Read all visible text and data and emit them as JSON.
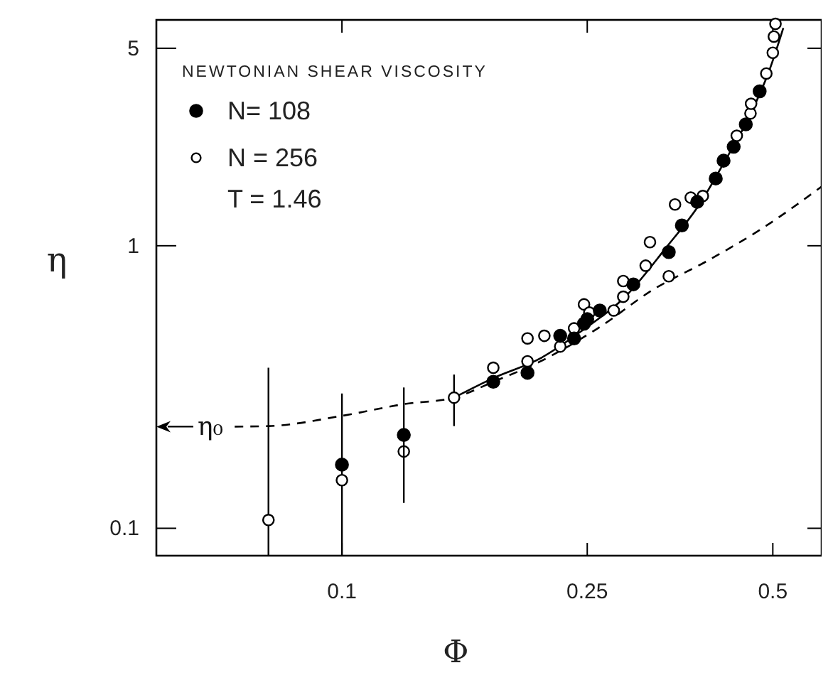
{
  "chart_data": {
    "type": "scatter",
    "legend_title": "NEWTONIAN SHEAR VISCOSITY",
    "xlabel": "Φ",
    "ylabel": "η",
    "log": "xy",
    "xlim": [
      0.05,
      0.6
    ],
    "ylim": [
      0.08,
      6.3
    ],
    "xticks": [
      0.1,
      0.25,
      0.5
    ],
    "yticks": [
      0.1,
      1,
      5
    ],
    "legend": "top left",
    "marker": "circle",
    "annotations": [
      "T = 1.46",
      "η₀"
    ],
    "series": [
      {
        "name": "N= 108",
        "color": "#000000",
        "x": [
          0.1,
          0.126,
          0.176,
          0.2,
          0.226,
          0.238,
          0.247,
          0.25,
          0.262,
          0.297,
          0.339,
          0.356,
          0.377,
          0.404,
          0.416,
          0.432,
          0.452,
          0.476
        ],
        "values": [
          0.168,
          0.214,
          0.33,
          0.355,
          0.48,
          0.47,
          0.53,
          0.55,
          0.59,
          0.73,
          0.95,
          1.18,
          1.43,
          1.73,
          2.0,
          2.24,
          2.69,
          3.52
        ],
        "errors": [
          null,
          [
            0.123,
            0.315
          ],
          null,
          null,
          null,
          null,
          null,
          null,
          null,
          null,
          null,
          null,
          null,
          null,
          null,
          null,
          null,
          null
        ]
      },
      {
        "name": "N = 256",
        "color": "#ffffff",
        "x": [
          0.076,
          0.1,
          0.126,
          0.152,
          0.176,
          0.2,
          0.2,
          0.213,
          0.226,
          0.238,
          0.247,
          0.252,
          0.276,
          0.286,
          0.286,
          0.311,
          0.316,
          0.339,
          0.347,
          0.368,
          0.385,
          0.437,
          0.46,
          0.461,
          0.488,
          0.5,
          0.502,
          0.505
        ],
        "values": [
          0.107,
          0.148,
          0.187,
          0.29,
          0.37,
          0.39,
          0.47,
          0.48,
          0.44,
          0.51,
          0.62,
          0.58,
          0.59,
          0.66,
          0.75,
          0.85,
          1.03,
          0.78,
          1.4,
          1.48,
          1.5,
          2.45,
          2.94,
          3.18,
          4.07,
          4.82,
          5.5,
          6.1
        ],
        "errors": [
          [
            0.08,
            0.37
          ],
          [
            0.08,
            0.3
          ],
          null,
          [
            0.23,
            0.35
          ],
          null,
          null,
          null,
          null,
          null,
          null,
          null,
          null,
          null,
          null,
          null,
          null,
          null,
          null,
          null,
          null,
          null,
          null,
          null,
          null,
          null,
          null,
          null,
          null
        ]
      },
      {
        "type": "line",
        "color": "#000000",
        "line_style": "solid",
        "marker": "none",
        "x": [
          0.152,
          0.176,
          0.21,
          0.245,
          0.29,
          0.335,
          0.38,
          0.42,
          0.457,
          0.494,
          0.52
        ],
        "values": [
          0.29,
          0.34,
          0.4,
          0.5,
          0.67,
          0.98,
          1.4,
          2.03,
          2.84,
          4.2,
          5.9
        ]
      },
      {
        "type": "line",
        "color": "#000000",
        "line_style": "dashed",
        "marker": "none",
        "x": [
          0.067,
          0.076,
          0.1,
          0.126,
          0.152,
          0.176,
          0.21,
          0.26,
          0.32,
          0.39,
          0.48,
          0.6
        ],
        "values": [
          0.229,
          0.23,
          0.25,
          0.275,
          0.29,
          0.33,
          0.39,
          0.51,
          0.7,
          0.88,
          1.15,
          1.62
        ]
      }
    ]
  }
}
